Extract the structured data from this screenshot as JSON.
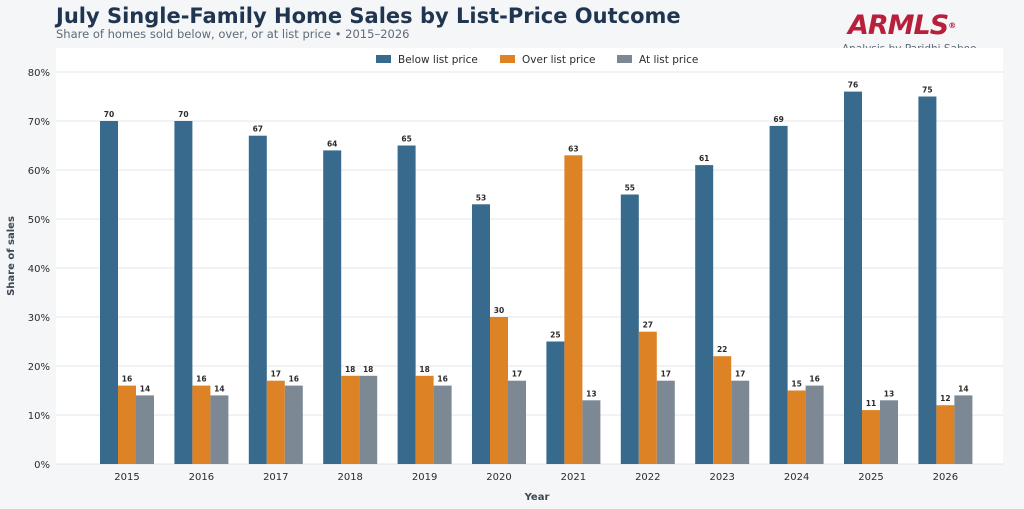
{
  "header": {
    "title": "July Single-Family Home Sales by List-Price Outcome",
    "subtitle": "Share of homes sold below, over, or at list price • 2015–2026",
    "logo_text": "ARMLS",
    "logo_mark": "®",
    "credit": "Analysis by Paridhi Saboo"
  },
  "colors": {
    "below": "#376a8c",
    "over": "#dd8325",
    "at": "#7c8893",
    "grid": "#e2e6ea",
    "label": "#2b2b2b",
    "logo": "#b81f3a"
  },
  "chart_data": {
    "type": "bar",
    "xlabel": "Year",
    "ylabel": "Share of sales",
    "ylim": [
      0,
      80
    ],
    "ytick_labels": [
      "0%",
      "10%",
      "20%",
      "30%",
      "40%",
      "50%",
      "60%",
      "70%",
      "80%"
    ],
    "grid": true,
    "legend_position": "top-center",
    "categories": [
      "2015",
      "2016",
      "2017",
      "2018",
      "2019",
      "2020",
      "2021",
      "2022",
      "2023",
      "2024",
      "2025",
      "2026"
    ],
    "series": [
      {
        "name": "Below list price",
        "color": "#376a8c",
        "values": [
          70,
          70,
          67,
          64,
          65,
          53,
          25,
          55,
          61,
          69,
          76,
          75
        ]
      },
      {
        "name": "Over list price",
        "color": "#dd8325",
        "values": [
          16,
          16,
          17,
          18,
          18,
          30,
          63,
          27,
          22,
          15,
          11,
          12
        ]
      },
      {
        "name": "At list price",
        "color": "#7c8893",
        "values": [
          14,
          14,
          16,
          18,
          16,
          17,
          13,
          17,
          17,
          16,
          13,
          14
        ]
      }
    ]
  }
}
